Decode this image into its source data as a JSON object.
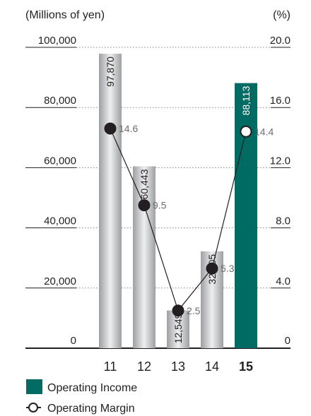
{
  "chart_data": {
    "type": "bar",
    "categories": [
      "11",
      "12",
      "13",
      "14",
      "15"
    ],
    "highlight_category": "15",
    "left_axis": {
      "unit_label": "(Millions of yen)",
      "ticks": [
        "100,000",
        "80,000",
        "60,000",
        "40,000",
        "20,000",
        "0"
      ],
      "ylim": [
        0,
        100000
      ]
    },
    "right_axis": {
      "unit_label": "(%)",
      "ticks": [
        "20.0",
        "16.0",
        "12.0",
        "8.0",
        "4.0",
        "0"
      ],
      "ylim": [
        0,
        20
      ]
    },
    "series": [
      {
        "name": "Operating Income",
        "kind": "bar",
        "axis": "left",
        "values": [
          97870,
          60443,
          12549,
          32205,
          88113
        ],
        "labels": [
          "97,870",
          "60,443",
          "12,549",
          "32,205",
          "88,113"
        ],
        "color": "#b3b3b3",
        "highlight_color": "#006b63"
      },
      {
        "name": "Operating Margin",
        "kind": "line",
        "axis": "right",
        "values": [
          14.6,
          9.5,
          2.5,
          5.3,
          14.4
        ],
        "labels": [
          "14.6",
          "9.5",
          "2.5",
          "5.3",
          "14.4"
        ],
        "color": "#231f20"
      }
    ],
    "grid": true,
    "legend_position": "bottom-left"
  }
}
